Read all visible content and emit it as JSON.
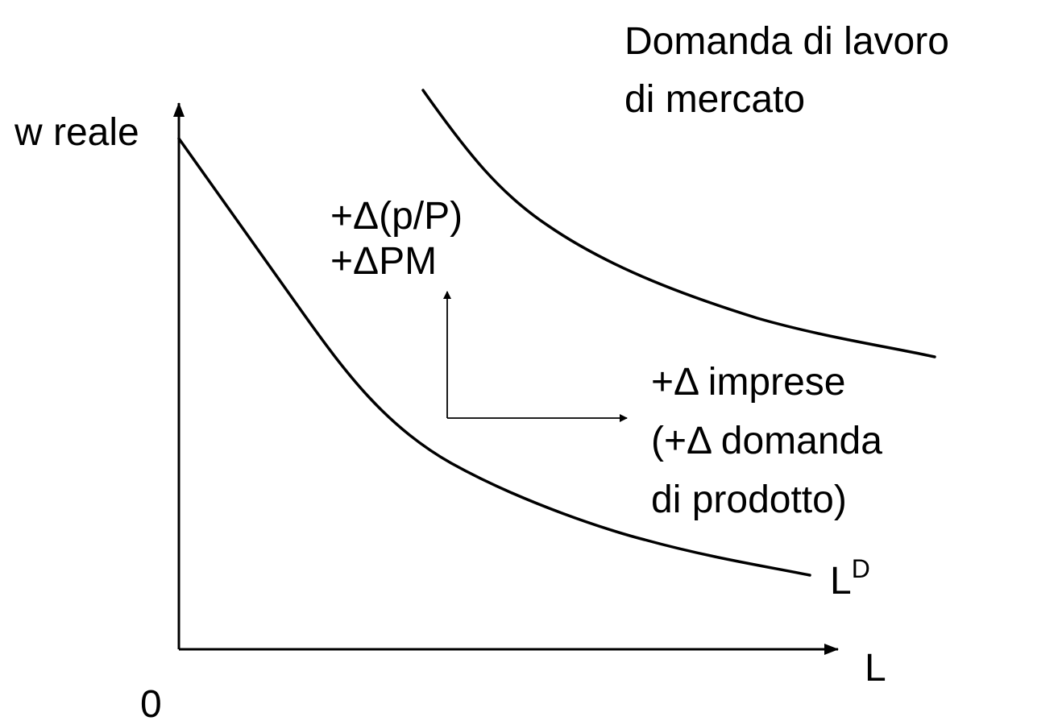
{
  "title": [
    "Domanda di lavoro",
    "di mercato"
  ],
  "axes": {
    "y_label": "w reale",
    "x_label": "L",
    "origin": "0"
  },
  "curve_label": {
    "text": "L",
    "superscript": "D"
  },
  "annotations": {
    "shift_causes": [
      "+Δ(p/P)",
      "+ΔPM"
    ],
    "demand_causes": [
      "+Δ imprese",
      "(+Δ domanda",
      "di prodotto)"
    ]
  }
}
